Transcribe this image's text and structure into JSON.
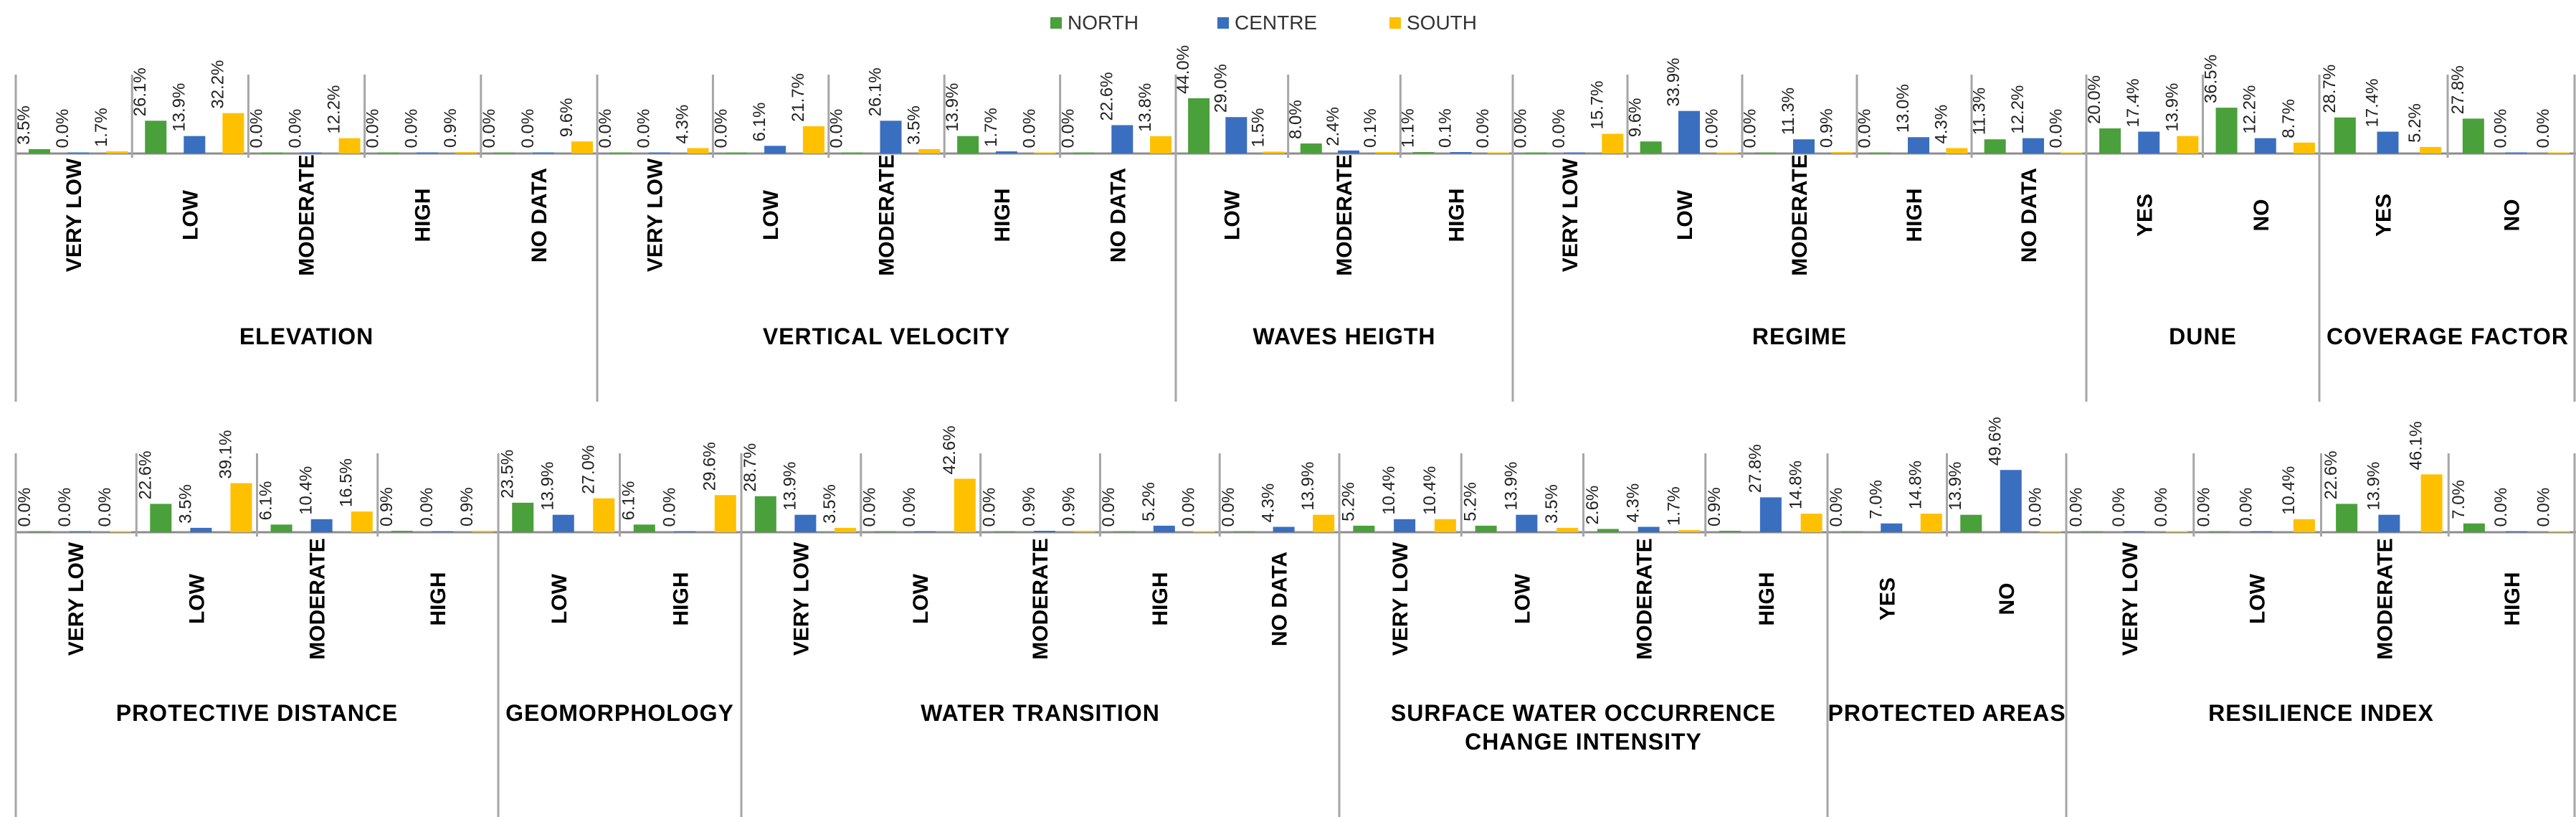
{
  "legend": [
    {
      "name": "NORTH",
      "color": "#4aa03a"
    },
    {
      "name": "CENTRE",
      "color": "#3a6fbf"
    },
    {
      "name": "SOUTH",
      "color": "#ffc000"
    }
  ],
  "chart_data": [
    {
      "type": "bar",
      "series_names": [
        "NORTH",
        "CENTRE",
        "SOUTH"
      ],
      "ylim": [
        0,
        50
      ],
      "groups": [
        {
          "label": "ELEVATION",
          "categories": [
            {
              "label": "VERY LOW",
              "values": [
                3.5,
                0.0,
                1.7
              ]
            },
            {
              "label": "LOW",
              "values": [
                26.1,
                13.9,
                32.2
              ]
            },
            {
              "label": "MODERATE",
              "values": [
                0.0,
                0.0,
                12.2
              ]
            },
            {
              "label": "HIGH",
              "values": [
                0.0,
                0.0,
                0.9
              ]
            },
            {
              "label": "NO DATA",
              "values": [
                0.0,
                0.0,
                9.6
              ]
            }
          ]
        },
        {
          "label": "VERTICAL VELOCITY",
          "categories": [
            {
              "label": "VERY LOW",
              "values": [
                0.0,
                0.0,
                4.3
              ]
            },
            {
              "label": "LOW",
              "values": [
                0.0,
                6.1,
                21.7
              ]
            },
            {
              "label": "MODERATE",
              "values": [
                0.0,
                26.1,
                3.5
              ]
            },
            {
              "label": "HIGH",
              "values": [
                13.9,
                1.7,
                0.0
              ]
            },
            {
              "label": "NO DATA",
              "values": [
                0.0,
                22.6,
                13.8
              ]
            }
          ]
        },
        {
          "label": "WAVES HEIGTH",
          "categories": [
            {
              "label": "LOW",
              "values": [
                44.0,
                29.0,
                1.5
              ]
            },
            {
              "label": "MODERATE",
              "values": [
                8.0,
                2.4,
                0.1
              ]
            },
            {
              "label": "HIGH",
              "values": [
                1.1,
                0.1,
                0.0
              ]
            }
          ]
        },
        {
          "label": "REGIME",
          "categories": [
            {
              "label": "VERY LOW",
              "values": [
                0.0,
                0.0,
                15.7
              ]
            },
            {
              "label": "LOW",
              "values": [
                9.6,
                33.9,
                0.0
              ]
            },
            {
              "label": "MODERATE",
              "values": [
                0.0,
                11.3,
                0.9
              ]
            },
            {
              "label": "HIGH",
              "values": [
                0.0,
                13.0,
                4.3
              ]
            },
            {
              "label": "NO DATA",
              "values": [
                11.3,
                12.2,
                0.0
              ]
            }
          ]
        },
        {
          "label": "DUNE",
          "categories": [
            {
              "label": "YES",
              "values": [
                20.0,
                17.4,
                13.9
              ]
            },
            {
              "label": "NO",
              "values": [
                36.5,
                12.2,
                8.7
              ]
            }
          ]
        },
        {
          "label": "COVERAGE FACTOR",
          "categories": [
            {
              "label": "YES",
              "values": [
                28.7,
                17.4,
                5.2
              ]
            },
            {
              "label": "NO",
              "values": [
                27.8,
                0.0,
                0.0
              ]
            }
          ]
        }
      ]
    },
    {
      "type": "bar",
      "series_names": [
        "NORTH",
        "CENTRE",
        "SOUTH"
      ],
      "ylim": [
        0,
        50
      ],
      "groups": [
        {
          "label": "PROTECTIVE DISTANCE",
          "categories": [
            {
              "label": "VERY LOW",
              "values": [
                0.0,
                0.0,
                0.0
              ]
            },
            {
              "label": "LOW",
              "values": [
                22.6,
                3.5,
                39.1
              ]
            },
            {
              "label": "MODERATE",
              "values": [
                6.1,
                10.4,
                16.5
              ]
            },
            {
              "label": "HIGH",
              "values": [
                0.9,
                0.0,
                0.9
              ]
            }
          ]
        },
        {
          "label": "GEOMORPHOLOGY",
          "categories": [
            {
              "label": "LOW",
              "values": [
                23.5,
                13.9,
                27.0
              ]
            },
            {
              "label": "HIGH",
              "values": [
                6.1,
                0.0,
                29.6
              ]
            }
          ]
        },
        {
          "label": "WATER TRANSITION",
          "categories": [
            {
              "label": "VERY LOW",
              "values": [
                28.7,
                13.9,
                3.5
              ]
            },
            {
              "label": "LOW",
              "values": [
                0.0,
                0.0,
                42.6
              ]
            },
            {
              "label": "MODERATE",
              "values": [
                0.0,
                0.9,
                0.9
              ]
            },
            {
              "label": "HIGH",
              "values": [
                0.0,
                5.2,
                0.0
              ]
            },
            {
              "label": "NO DATA",
              "values": [
                0.0,
                4.3,
                13.9
              ]
            }
          ]
        },
        {
          "label": "SURFACE WATER OCCURRENCE\nCHANGE INTENSITY",
          "categories": [
            {
              "label": "VERY LOW",
              "values": [
                5.2,
                10.4,
                10.4
              ]
            },
            {
              "label": "LOW",
              "values": [
                5.2,
                13.9,
                3.5
              ]
            },
            {
              "label": "MODERATE",
              "values": [
                2.6,
                4.3,
                1.7
              ]
            },
            {
              "label": "HIGH",
              "values": [
                0.9,
                27.8,
                14.8
              ]
            }
          ]
        },
        {
          "label": "PROTECTED AREAS",
          "categories": [
            {
              "label": "YES",
              "values": [
                0.0,
                7.0,
                14.8
              ]
            },
            {
              "label": "NO",
              "values": [
                13.9,
                49.6,
                0.0
              ]
            }
          ]
        },
        {
          "label": "RESILIENCE INDEX",
          "categories": [
            {
              "label": "VERY LOW",
              "values": [
                0.0,
                0.0,
                0.0
              ]
            },
            {
              "label": "LOW",
              "values": [
                0.0,
                0.0,
                10.4
              ]
            },
            {
              "label": "MODERATE",
              "values": [
                22.6,
                13.9,
                46.1
              ]
            },
            {
              "label": "HIGH",
              "values": [
                7.0,
                0.0,
                0.0
              ]
            }
          ]
        }
      ]
    }
  ]
}
